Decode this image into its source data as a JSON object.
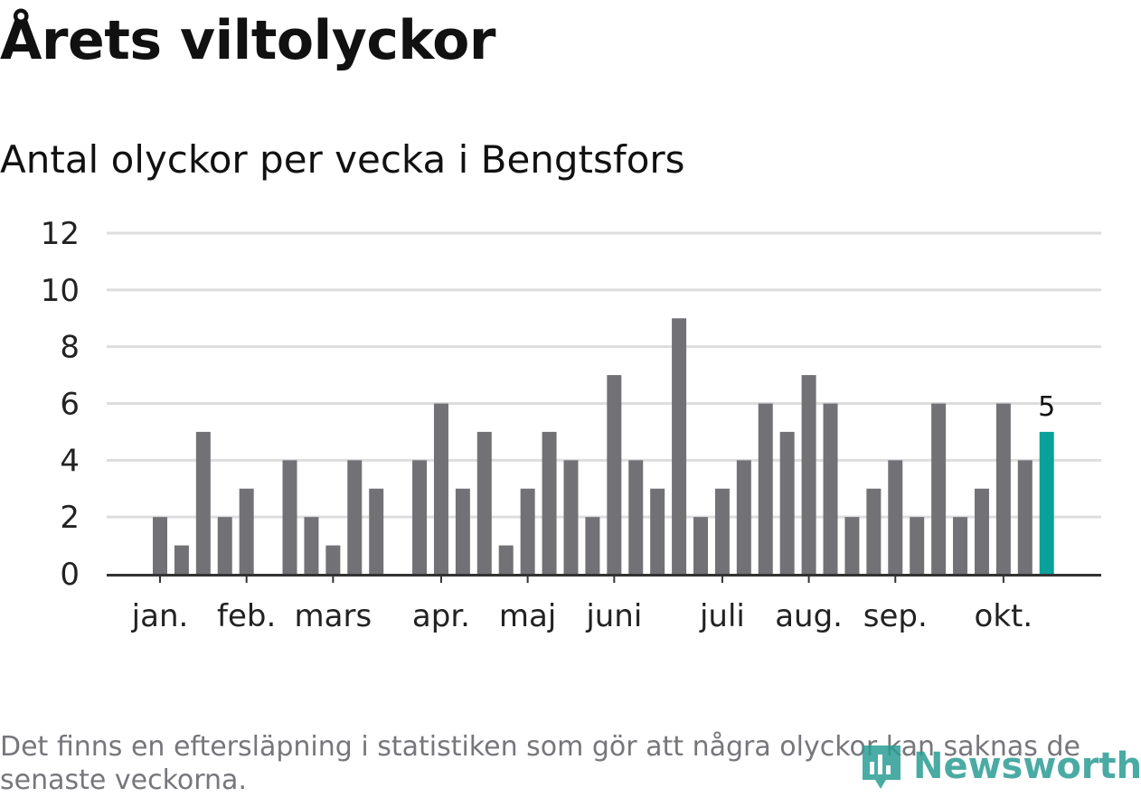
{
  "title": "Årets viltolyckor",
  "subtitle": "Antal olyckor per vecka i Bengtsfors",
  "footnote": "Det finns en eftersläpning i statistiken som gör att några olyckor kan saknas de senaste veckorna.",
  "logo": {
    "text": "Newsworthy",
    "icon": "newsworthy-logo-icon",
    "color": "#2a9d94"
  },
  "colors": {
    "bar": "#727176",
    "highlight": "#0aa19a",
    "grid": "#dddddd",
    "axis": "#333333"
  },
  "chart_data": {
    "type": "bar",
    "ylim": [
      0,
      12
    ],
    "yticks": [
      0,
      2,
      4,
      6,
      8,
      10,
      12
    ],
    "values": [
      2,
      1,
      5,
      2,
      3,
      0,
      4,
      2,
      1,
      4,
      3,
      0,
      4,
      6,
      3,
      5,
      1,
      3,
      5,
      4,
      2,
      7,
      4,
      3,
      9,
      2,
      3,
      4,
      6,
      5,
      7,
      6,
      2,
      3,
      4,
      2,
      6,
      2,
      3,
      6,
      4,
      5
    ],
    "highlight_index": 41,
    "highlight_label": "5",
    "month_labels": [
      {
        "label": "jan.",
        "week_index": 0
      },
      {
        "label": "feb.",
        "week_index": 4
      },
      {
        "label": "mars",
        "week_index": 8
      },
      {
        "label": "apr.",
        "week_index": 13
      },
      {
        "label": "maj",
        "week_index": 17
      },
      {
        "label": "juni",
        "week_index": 21
      },
      {
        "label": "juli",
        "week_index": 26
      },
      {
        "label": "aug.",
        "week_index": 30
      },
      {
        "label": "sep.",
        "week_index": 34
      },
      {
        "label": "okt.",
        "week_index": 39
      }
    ],
    "grid": true
  }
}
